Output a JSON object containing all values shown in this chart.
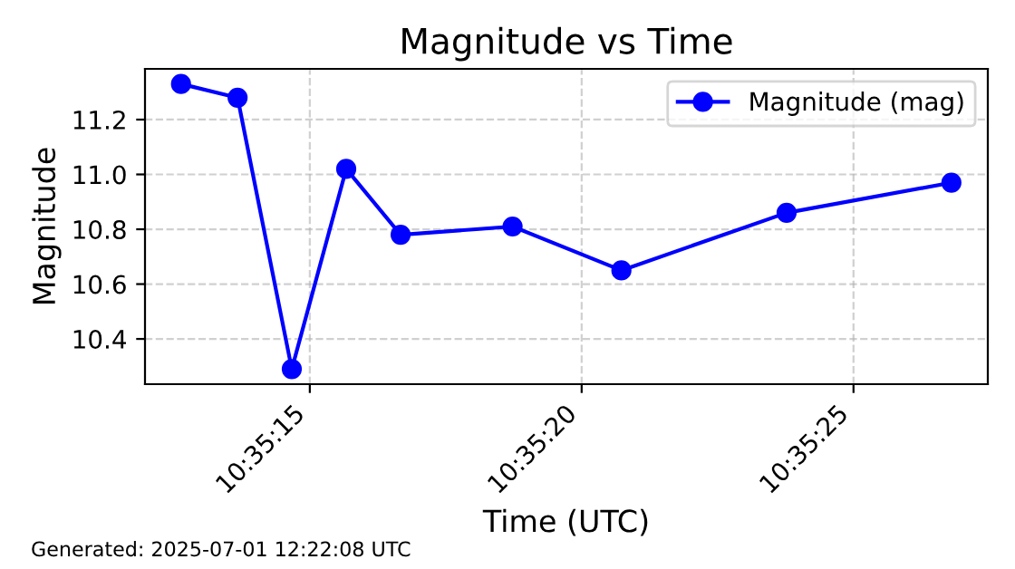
{
  "chart_data": {
    "type": "line",
    "title": "Magnitude vs Time",
    "xlabel": "Time (UTC)",
    "ylabel": "Magnitude",
    "x": [
      10.586842,
      10.587131,
      10.587408,
      10.587686,
      10.587964,
      10.588536,
      10.589092,
      10.589936,
      10.590778
    ],
    "series": [
      {
        "name": "Magnitude (mag)",
        "color": "#0000ff",
        "values": [
          11.33,
          11.28,
          10.29,
          11.02,
          10.78,
          10.81,
          10.65,
          10.86,
          10.97
        ]
      }
    ],
    "xlim": [
      10.586658,
      10.590964
    ],
    "xticks": [
      {
        "value": 10.5875,
        "label": "10:35:15"
      },
      {
        "value": 10.5888889,
        "label": "10:35:20"
      },
      {
        "value": 10.5902778,
        "label": "10:35:25"
      }
    ],
    "ylim": [
      10.235,
      11.385
    ],
    "yticks": [
      10.4,
      10.6,
      10.8,
      {
        "value": 11.0,
        "label": "11.0"
      },
      11.2
    ],
    "grid": true,
    "legend": "top right",
    "marker": "circle",
    "annotations": [
      "Generated: 2025-07-01 12:22:08 UTC"
    ]
  }
}
